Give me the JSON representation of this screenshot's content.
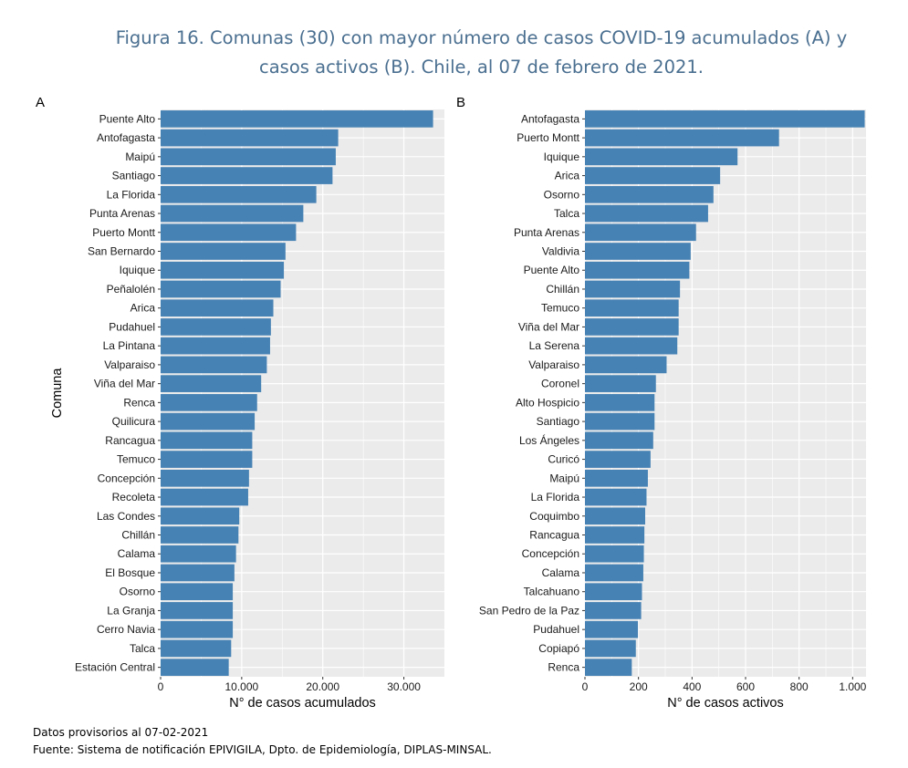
{
  "figure": {
    "title_line1": "Figura 16. Comunas (30) con mayor número de casos COVID-19 acumulados (A) y",
    "title_line2": "casos activos (B). Chile, al 07 de febrero de 2021."
  },
  "notes": {
    "line1": "Datos provisorios al 07-02-2021",
    "line2": "Fuente: Sistema de notificación EPIVIGILA, Dpto. de Epidemiología, DIPLAS-MINSAL."
  },
  "colors": {
    "bar": "#4682b4",
    "panel_bg": "#ebebeb",
    "grid": "#ffffff",
    "title": "#4a6f90"
  },
  "chart_data": [
    {
      "type": "bar",
      "orientation": "horizontal",
      "panel_label": "A",
      "xlabel": "N° de casos acumulados",
      "ylabel": "Comuna",
      "xlim": [
        0,
        35000
      ],
      "xticks": [
        0,
        10000,
        20000,
        30000
      ],
      "xtick_labels": [
        "0",
        "10.000",
        "20.000",
        "30.000"
      ],
      "grid": true,
      "categories": [
        "Puente Alto",
        "Antofagasta",
        "Maipú",
        "Santiago",
        "La Florida",
        "Punta Arenas",
        "Puerto Montt",
        "San Bernardo",
        "Iquique",
        "Peñalolén",
        "Arica",
        "Pudahuel",
        "La Pintana",
        "Valparaiso",
        "Viña del Mar",
        "Renca",
        "Quilicura",
        "Rancagua",
        "Temuco",
        "Concepción",
        "Recoleta",
        "Las Condes",
        "Chillán",
        "Calama",
        "El Bosque",
        "Osorno",
        "La Granja",
        "Cerro Navia",
        "Talca",
        "Estación Central"
      ],
      "values": [
        33600,
        21900,
        21600,
        21200,
        19200,
        17600,
        16700,
        15400,
        15200,
        14800,
        13900,
        13600,
        13500,
        13100,
        12400,
        11900,
        11600,
        11300,
        11300,
        10900,
        10800,
        9700,
        9600,
        9300,
        9100,
        8900,
        8900,
        8900,
        8700,
        8400
      ]
    },
    {
      "type": "bar",
      "orientation": "horizontal",
      "panel_label": "B",
      "xlabel": "N° de casos activos",
      "ylabel": "",
      "xlim": [
        0,
        1050
      ],
      "xticks": [
        0,
        200,
        400,
        600,
        800,
        1000
      ],
      "xtick_labels": [
        "0",
        "200",
        "400",
        "600",
        "800",
        "1.000"
      ],
      "grid": true,
      "categories": [
        "Antofagasta",
        "Puerto Montt",
        "Iquique",
        "Arica",
        "Osorno",
        "Talca",
        "Punta Arenas",
        "Valdivia",
        "Puente Alto",
        "Chillán",
        "Temuco",
        "Viña del Mar",
        "La Serena",
        "Valparaiso",
        "Coronel",
        "Alto Hospicio",
        "Santiago",
        "Los Ángeles",
        "Curicó",
        "Maipú",
        "La Florida",
        "Coquimbo",
        "Rancagua",
        "Concepción",
        "Calama",
        "Talcahuano",
        "San Pedro de la Paz",
        "Pudahuel",
        "Copiapó",
        "Renca"
      ],
      "values": [
        1045,
        725,
        570,
        505,
        480,
        460,
        415,
        395,
        390,
        355,
        350,
        350,
        345,
        305,
        265,
        260,
        260,
        255,
        245,
        235,
        230,
        225,
        222,
        220,
        218,
        213,
        210,
        198,
        190,
        175
      ]
    }
  ]
}
